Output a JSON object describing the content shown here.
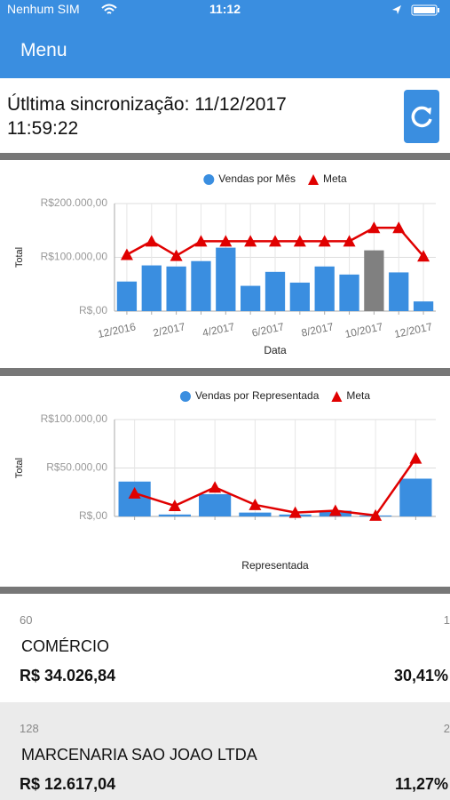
{
  "status_bar": {
    "carrier": "Nenhum SIM",
    "time": "11:12"
  },
  "header": {
    "title": "Menu"
  },
  "sync": {
    "text": "Útltima sincronização: 11/12/2017 11:59:22"
  },
  "chart_data": [
    {
      "type": "bar",
      "x_label": "Data",
      "y_label": "Total",
      "categories": [
        "12/2016",
        null,
        "2/2017",
        null,
        "4/2017",
        null,
        "6/2017",
        null,
        "8/2017",
        null,
        "10/2017",
        null,
        "12/2017"
      ],
      "series": [
        {
          "name": "Vendas por Mês",
          "type": "bar",
          "color": "#3a8ee0",
          "colors": [
            "#3a8ee0",
            "#3a8ee0",
            "#3a8ee0",
            "#3a8ee0",
            "#3a8ee0",
            "#3a8ee0",
            "#3a8ee0",
            "#3a8ee0",
            "#3a8ee0",
            "#3a8ee0",
            "#808080",
            "#3a8ee0",
            "#3a8ee0"
          ],
          "values": [
            55000,
            85000,
            83000,
            93000,
            118000,
            47000,
            73000,
            53000,
            83000,
            68000,
            113000,
            72000,
            18000
          ]
        },
        {
          "name": "Meta",
          "type": "line",
          "color": "#e00000",
          "values": [
            105000,
            130000,
            103000,
            130000,
            130000,
            130000,
            130000,
            130000,
            130000,
            130000,
            155000,
            155000,
            102000
          ]
        }
      ],
      "ylim": [
        0,
        200000
      ],
      "yticks": [
        {
          "value": 0,
          "label": "R$,00"
        },
        {
          "value": 100000,
          "label": "R$100.000,00"
        },
        {
          "value": 200000,
          "label": "R$200.000,00"
        }
      ],
      "grid": true
    },
    {
      "type": "bar",
      "x_label": "Representada",
      "y_label": "Total",
      "categories": [
        null,
        null,
        null,
        null,
        null,
        null,
        null,
        null
      ],
      "series": [
        {
          "name": "Vendas por Representada",
          "type": "bar",
          "color": "#3a8ee0",
          "values": [
            36000,
            2000,
            23000,
            4000,
            2000,
            6000,
            1000,
            39000
          ]
        },
        {
          "name": "Meta",
          "type": "line",
          "color": "#e00000",
          "values": [
            24000,
            11000,
            30000,
            12000,
            4000,
            6000,
            1000,
            60000
          ]
        }
      ],
      "ylim": [
        0,
        100000
      ],
      "yticks": [
        {
          "value": 0,
          "label": "R$,00"
        },
        {
          "value": 50000,
          "label": "R$50.000,00"
        },
        {
          "value": 100000,
          "label": "R$100.000,00"
        }
      ],
      "grid": true
    }
  ],
  "list": {
    "items": [
      {
        "code": "60",
        "rank": "1",
        "name": "COMÉRCIO",
        "amount": "R$ 34.026,84",
        "percent": "30,41%"
      },
      {
        "code": "128",
        "rank": "2",
        "name": "MARCENARIA SAO JOAO LTDA",
        "amount": "R$ 12.617,04",
        "percent": "11,27%"
      }
    ]
  }
}
